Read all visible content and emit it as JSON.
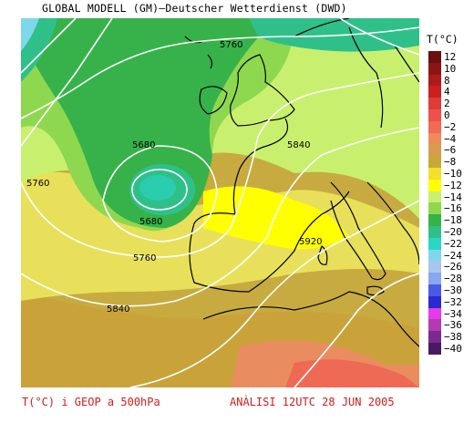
{
  "title": "GLOBAL MODELL (GM)–Deutscher Wetterdienst (DWD)",
  "legend": {
    "title": "T(°C)",
    "items": [
      {
        "label": "12",
        "color": "#6b0f0f"
      },
      {
        "label": "10",
        "color": "#8e1414"
      },
      {
        "label": "8",
        "color": "#b01a1a"
      },
      {
        "label": "4",
        "color": "#cc1f1f"
      },
      {
        "label": "2",
        "color": "#e03a3a"
      },
      {
        "label": "0",
        "color": "#f0504a"
      },
      {
        "label": "−2",
        "color": "#f06a55"
      },
      {
        "label": "−4",
        "color": "#ee8a5c"
      },
      {
        "label": "−6",
        "color": "#d99c4e"
      },
      {
        "label": "−8",
        "color": "#c9a83a"
      },
      {
        "label": "−10",
        "color": "#f2e02a"
      },
      {
        "label": "−12",
        "color": "#ffff00"
      },
      {
        "label": "−14",
        "color": "#c8f06e"
      },
      {
        "label": "−16",
        "color": "#8ed850"
      },
      {
        "label": "−18",
        "color": "#37b24a"
      },
      {
        "label": "−20",
        "color": "#2fc08a"
      },
      {
        "label": "−22",
        "color": "#2ad6c8"
      },
      {
        "label": "−24",
        "color": "#7ed8ec"
      },
      {
        "label": "−26",
        "color": "#a8c6f0"
      },
      {
        "label": "−28",
        "color": "#8aa8f0"
      },
      {
        "label": "−30",
        "color": "#4a5ae8"
      },
      {
        "label": "−32",
        "color": "#2a2ad0"
      },
      {
        "label": "−34",
        "color": "#e83ae8"
      },
      {
        "label": "−36",
        "color": "#b43ab4"
      },
      {
        "label": "−38",
        "color": "#7a2a90"
      },
      {
        "label": "−40",
        "color": "#4a1a60"
      }
    ]
  },
  "contour_labels": [
    "5760",
    "5680",
    "5840",
    "5760",
    "5680",
    "5920",
    "5760",
    "5840"
  ],
  "caption": {
    "left": "T(°C) i GEOP a 500hPa",
    "right": "ANÀLISI 12UTC 28 JUN 2005"
  },
  "colors": {
    "caption": "#d21e1e"
  }
}
